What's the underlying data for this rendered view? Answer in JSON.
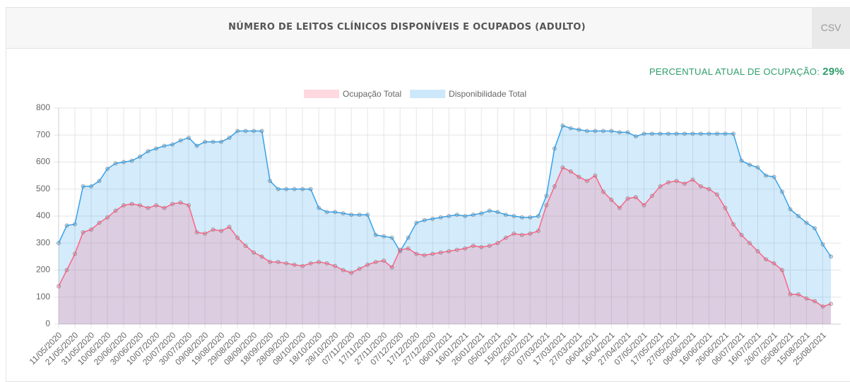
{
  "header": {
    "title": "NÚMERO DE LEITOS CLÍNICOS DISPONÍVEIS E OCUPADOS (ADULTO)",
    "button": "CSV"
  },
  "occupancy": {
    "label": "PERCENTUAL ATUAL DE OCUPAÇÃO:",
    "value": "29%"
  },
  "chart_data": {
    "type": "line",
    "area": true,
    "grid": true,
    "legend": "top",
    "categories": [
      "11/05/2020",
      null,
      "21/05/2020",
      null,
      "31/05/2020",
      null,
      "10/06/2020",
      null,
      "20/06/2020",
      null,
      "30/06/2020",
      null,
      "10/07/2020",
      null,
      "20/07/2020",
      null,
      "30/07/2020",
      null,
      "09/08/2020",
      null,
      "19/08/2020",
      null,
      "29/08/2020",
      null,
      "08/09/2020",
      null,
      "18/09/2020",
      null,
      "28/09/2020",
      null,
      "08/10/2020",
      null,
      "18/10/2020",
      null,
      "28/10/2020",
      null,
      "07/11/2020",
      null,
      "17/11/2020",
      null,
      "27/11/2020",
      null,
      "07/12/2020",
      null,
      "17/12/2020",
      null,
      "27/12/2020",
      null,
      "06/01/2021",
      null,
      "16/01/2021",
      null,
      "26/01/2021",
      null,
      "05/02/2021",
      null,
      "15/02/2021",
      null,
      "25/02/2021",
      null,
      "07/03/2021",
      null,
      "17/03/2021",
      null,
      "27/03/2021",
      null,
      "06/04/2021",
      null,
      "16/04/2021",
      null,
      "27/04/2021",
      null,
      "07/05/2021",
      null,
      "17/05/2021",
      null,
      "27/05/2021",
      null,
      "06/06/2021",
      null,
      "16/06/2021",
      null,
      "26/06/2021",
      null,
      "06/07/2021",
      null,
      "16/07/2021",
      null,
      "26/07/2021",
      null,
      "05/08/2021",
      null,
      "15/08/2021",
      null,
      "25/08/2021",
      null
    ],
    "series": [
      {
        "name": "Ocupação Total",
        "color": "#ff6384",
        "values": [
          140,
          200,
          260,
          340,
          350,
          375,
          395,
          420,
          440,
          445,
          440,
          430,
          440,
          430,
          445,
          450,
          440,
          340,
          335,
          350,
          345,
          360,
          320,
          290,
          265,
          250,
          230,
          230,
          225,
          220,
          215,
          225,
          230,
          225,
          215,
          200,
          190,
          205,
          220,
          230,
          235,
          210,
          275,
          280,
          260,
          255,
          260,
          265,
          270,
          275,
          280,
          290,
          285,
          290,
          300,
          320,
          335,
          330,
          335,
          345,
          440,
          510,
          580,
          565,
          545,
          530,
          550,
          490,
          460,
          430,
          465,
          470,
          440,
          475,
          510,
          525,
          530,
          520,
          535,
          510,
          500,
          480,
          430,
          370,
          330,
          300,
          270,
          240,
          225,
          200,
          110,
          110,
          95,
          85,
          65,
          75
        ]
      },
      {
        "name": "Disponibilidade Total",
        "color": "#36a2eb",
        "values": [
          300,
          365,
          370,
          510,
          510,
          530,
          575,
          595,
          600,
          605,
          620,
          640,
          650,
          660,
          665,
          680,
          690,
          660,
          675,
          675,
          675,
          690,
          715,
          715,
          715,
          715,
          530,
          500,
          500,
          500,
          500,
          500,
          430,
          415,
          415,
          410,
          405,
          405,
          405,
          330,
          325,
          320,
          270,
          320,
          375,
          385,
          390,
          395,
          400,
          405,
          400,
          405,
          410,
          420,
          415,
          405,
          400,
          395,
          395,
          400,
          475,
          650,
          735,
          725,
          720,
          715,
          715,
          715,
          715,
          710,
          710,
          695,
          705,
          705,
          705,
          705,
          705,
          705,
          705,
          705,
          705,
          705,
          705,
          705,
          605,
          590,
          580,
          550,
          545,
          490,
          425,
          400,
          375,
          355,
          295,
          250
        ]
      }
    ],
    "ylim": [
      0,
      800
    ],
    "yticks": [
      0,
      100,
      200,
      300,
      400,
      500,
      600,
      700,
      800
    ]
  }
}
